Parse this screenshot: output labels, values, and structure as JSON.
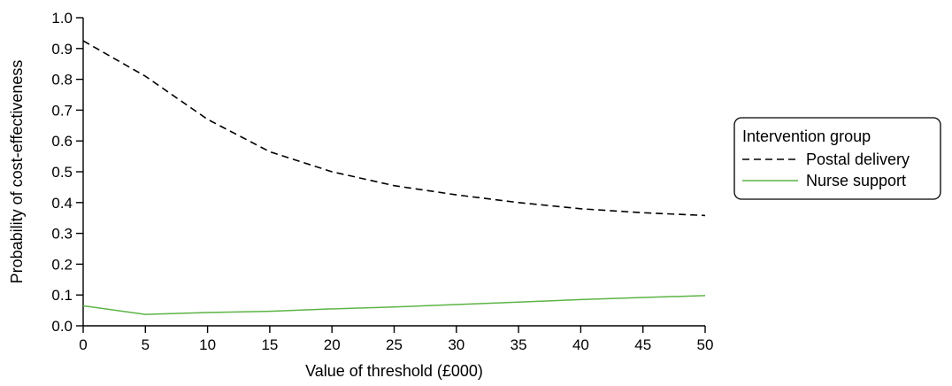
{
  "chart_data": {
    "type": "line",
    "title": "",
    "xlabel": "Value of threshold (£000)",
    "ylabel": "Probability of cost-effectiveness",
    "xlim": [
      0,
      50
    ],
    "ylim": [
      0,
      1
    ],
    "x_ticks": [
      0,
      5,
      10,
      15,
      20,
      25,
      30,
      35,
      40,
      45,
      50
    ],
    "x_tick_labels": [
      "0",
      "5",
      "10",
      "15",
      "20",
      "25",
      "30",
      "35",
      "40",
      "45",
      "50"
    ],
    "y_ticks": [
      0,
      0.1,
      0.2,
      0.3,
      0.4,
      0.5,
      0.6,
      0.7,
      0.8,
      0.9,
      1.0
    ],
    "y_tick_labels": [
      "0.0",
      "0.1",
      "0.2",
      "0.3",
      "0.4",
      "0.5",
      "0.6",
      "0.7",
      "0.8",
      "0.9",
      "1.0"
    ],
    "grid": false,
    "legend": {
      "title": "Intervention group",
      "placement": "right"
    },
    "x": [
      0,
      5,
      10,
      15,
      20,
      25,
      30,
      35,
      40,
      45,
      50
    ],
    "series": [
      {
        "name": "Postal delivery",
        "color": "#000000",
        "dash": "dashed",
        "values": [
          0.925,
          0.81,
          0.67,
          0.565,
          0.5,
          0.455,
          0.425,
          0.4,
          0.38,
          0.367,
          0.358
        ]
      },
      {
        "name": "Nurse support",
        "color": "#5cb446",
        "dash": "solid",
        "values": [
          0.065,
          0.037,
          0.043,
          0.047,
          0.055,
          0.061,
          0.069,
          0.077,
          0.085,
          0.092,
          0.098
        ]
      }
    ]
  }
}
